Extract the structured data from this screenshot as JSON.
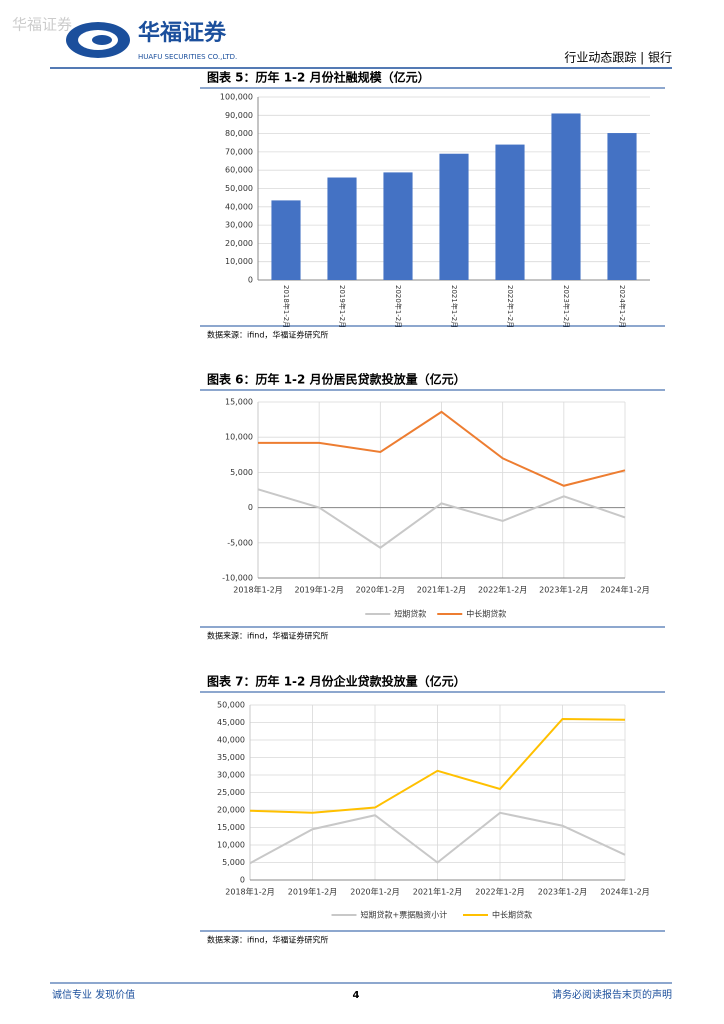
{
  "header": {
    "watermark": "华福证券",
    "logo_cn": "华福证券",
    "logo_en": "HUAFU SECURITIES CO.,LTD.",
    "section": "行业动态跟踪 | 银行"
  },
  "footer": {
    "motto": "诚信专业  发现价值",
    "page": "4",
    "notice": "请务必阅读报告末页的声明"
  },
  "chart_data": [
    {
      "type": "bar",
      "title": "图表 5：历年 1-2 月份社融规模（亿元）",
      "source": "数据来源：ifind，华福证券研究所",
      "categories": [
        "2018年1-2月",
        "2019年1-2月",
        "2020年1-2月",
        "2021年1-2月",
        "2022年1-2月",
        "2023年1-2月",
        "2024年1-2月"
      ],
      "values": [
        43500,
        56000,
        58800,
        69000,
        74000,
        91000,
        80300
      ],
      "color": "#4472c4",
      "ylim": [
        0,
        100000
      ],
      "yticks": [
        0,
        {
          "value": 10000,
          "label": "10,000"
        },
        {
          "value": 20000,
          "label": "20,000"
        },
        {
          "value": 30000,
          "label": "30,000"
        },
        {
          "value": 40000,
          "label": "40,000"
        },
        {
          "value": 50000,
          "label": "50,000"
        },
        {
          "value": 60000,
          "label": "60,000"
        },
        {
          "value": 70000,
          "label": "70,000"
        },
        {
          "value": 80000,
          "label": "80,000"
        },
        {
          "value": 90000,
          "label": "90,000"
        },
        {
          "value": 100000,
          "label": "100,000"
        }
      ],
      "grid": true
    },
    {
      "type": "line",
      "title": "图表 6：历年 1-2 月份居民贷款投放量（亿元）",
      "source": "数据来源：ifind，华福证券研究所",
      "categories": [
        "2018年1-2月",
        "2019年1-2月",
        "2020年1-2月",
        "2021年1-2月",
        "2022年1-2月",
        "2023年1-2月",
        "2024年1-2月"
      ],
      "series": [
        {
          "name": "短期贷款",
          "color": "#c8c8c8",
          "values": [
            2600,
            0,
            -5700,
            600,
            -1900,
            1600,
            -1400
          ]
        },
        {
          "name": "中长期贷款",
          "color": "#ed7d31",
          "values": [
            9200,
            9200,
            7900,
            13600,
            7000,
            3100,
            5300
          ]
        }
      ],
      "ylim": [
        -10000,
        15000
      ],
      "yticks": [
        {
          "value": -10000,
          "label": "-10,000"
        },
        {
          "value": -5000,
          "label": "-5,000"
        },
        0,
        {
          "value": 5000,
          "label": "5,000"
        },
        {
          "value": 10000,
          "label": "10,000"
        },
        {
          "value": 15000,
          "label": "15,000"
        }
      ],
      "grid": true
    },
    {
      "type": "line",
      "title": "图表 7：历年 1-2 月份企业贷款投放量（亿元）",
      "source": "数据来源：ifind，华福证券研究所",
      "categories": [
        "2018年1-2月",
        "2019年1-2月",
        "2020年1-2月",
        "2021年1-2月",
        "2022年1-2月",
        "2023年1-2月",
        "2024年1-2月"
      ],
      "series": [
        {
          "name": "短期贷款+票据融资小计",
          "color": "#c8c8c8",
          "values": [
            4800,
            14500,
            18500,
            5000,
            19200,
            15500,
            7200
          ]
        },
        {
          "name": "中长期贷款",
          "color": "#ffc000",
          "values": [
            19800,
            19200,
            20700,
            31200,
            26000,
            46000,
            45800
          ]
        }
      ],
      "ylim": [
        0,
        50000
      ],
      "yticks": [
        0,
        {
          "value": 5000,
          "label": "5,000"
        },
        {
          "value": 10000,
          "label": "10,000"
        },
        {
          "value": 15000,
          "label": "15,000"
        },
        {
          "value": 20000,
          "label": "20,000"
        },
        {
          "value": 25000,
          "label": "25,000"
        },
        {
          "value": 30000,
          "label": "30,000"
        },
        {
          "value": 35000,
          "label": "35,000"
        },
        {
          "value": 40000,
          "label": "40,000"
        },
        {
          "value": 45000,
          "label": "45,000"
        },
        {
          "value": 50000,
          "label": "50,000"
        }
      ],
      "grid": true
    }
  ]
}
